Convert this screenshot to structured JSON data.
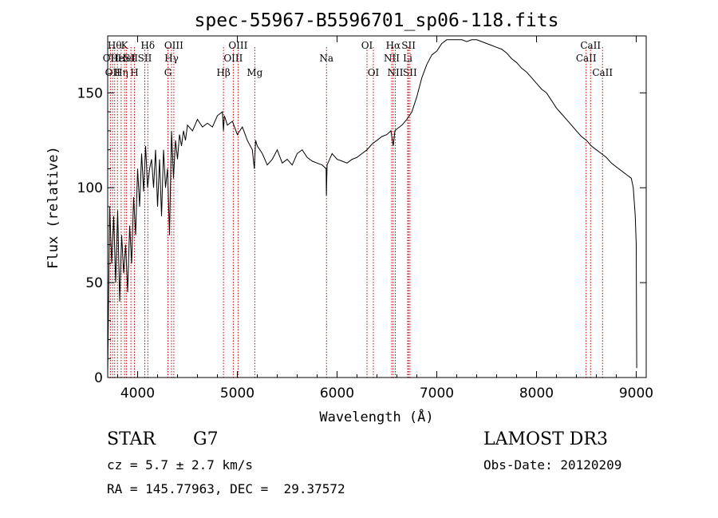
{
  "chart_data": {
    "type": "line",
    "title": "spec-55967-B5596701_sp06-118.fits",
    "xlabel": "Wavelength (Å)",
    "ylabel": "Flux (relative)",
    "xlim": [
      3700,
      9100
    ],
    "ylim": [
      0,
      180
    ],
    "xticks": [
      4000,
      5000,
      6000,
      7000,
      8000,
      9000
    ],
    "yticks": [
      0,
      50,
      100,
      150
    ],
    "series": [
      {
        "name": "spectrum",
        "color": "#000000",
        "x": [
          3700,
          3720,
          3740,
          3760,
          3780,
          3800,
          3820,
          3840,
          3860,
          3880,
          3900,
          3920,
          3940,
          3960,
          3980,
          4000,
          4020,
          4040,
          4060,
          4080,
          4100,
          4120,
          4140,
          4160,
          4180,
          4200,
          4220,
          4240,
          4260,
          4280,
          4300,
          4320,
          4340,
          4360,
          4380,
          4400,
          4420,
          4440,
          4460,
          4480,
          4500,
          4550,
          4600,
          4650,
          4700,
          4750,
          4800,
          4850,
          4861,
          4870,
          4900,
          4950,
          5000,
          5050,
          5100,
          5150,
          5170,
          5183,
          5200,
          5250,
          5300,
          5350,
          5400,
          5450,
          5500,
          5550,
          5600,
          5650,
          5700,
          5750,
          5800,
          5850,
          5890,
          5893,
          5900,
          5950,
          6000,
          6050,
          6100,
          6150,
          6200,
          6250,
          6300,
          6350,
          6400,
          6450,
          6500,
          6540,
          6563,
          6580,
          6600,
          6650,
          6700,
          6750,
          6800,
          6850,
          6900,
          6950,
          7000,
          7050,
          7100,
          7150,
          7200,
          7250,
          7300,
          7350,
          7400,
          7450,
          7500,
          7550,
          7600,
          7650,
          7700,
          7750,
          7800,
          7850,
          7900,
          7950,
          8000,
          8050,
          8100,
          8150,
          8200,
          8250,
          8300,
          8350,
          8400,
          8450,
          8500,
          8550,
          8600,
          8650,
          8700,
          8750,
          8800,
          8850,
          8900,
          8950,
          8970,
          8990,
          9000,
          9005
        ],
        "y": [
          2,
          90,
          60,
          85,
          50,
          88,
          40,
          75,
          55,
          70,
          45,
          80,
          60,
          95,
          75,
          110,
          90,
          118,
          98,
          122,
          100,
          110,
          115,
          100,
          120,
          90,
          115,
          85,
          120,
          100,
          110,
          75,
          130,
          105,
          125,
          115,
          128,
          122,
          130,
          125,
          133,
          130,
          136,
          132,
          134,
          132,
          138,
          140,
          130,
          138,
          133,
          135,
          128,
          132,
          125,
          120,
          110,
          125,
          122,
          118,
          112,
          115,
          120,
          113,
          115,
          112,
          118,
          120,
          116,
          114,
          113,
          112,
          110,
          96,
          112,
          118,
          115,
          114,
          113,
          115,
          116,
          118,
          120,
          123,
          125,
          127,
          128,
          130,
          122,
          130,
          131,
          133,
          136,
          140,
          148,
          158,
          165,
          170,
          172,
          176,
          178,
          178,
          178,
          178,
          177,
          178,
          178,
          177,
          176,
          175,
          174,
          173,
          171,
          168,
          166,
          163,
          161,
          158,
          155,
          152,
          150,
          146,
          142,
          139,
          136,
          133,
          130,
          127,
          125,
          122,
          120,
          118,
          116,
          113,
          111,
          109,
          107,
          105,
          100,
          85,
          70,
          5
        ]
      }
    ],
    "lines": [
      {
        "x": 3727,
        "label": "OII",
        "row": 2
      },
      {
        "x": 3750,
        "label": "OII",
        "row": 3
      },
      {
        "x": 3770,
        "label": "Hθ",
        "row": 1
      },
      {
        "x": 3798,
        "label": "He",
        "row": 2
      },
      {
        "x": 3835,
        "label": "Hη",
        "row": 3
      },
      {
        "x": 3869,
        "label": "K",
        "row": 1
      },
      {
        "x": 3889,
        "label": "HeI",
        "row": 2
      },
      {
        "x": 3933,
        "label": "SII",
        "row": 2
      },
      {
        "x": 3968,
        "label": "H",
        "row": 3
      },
      {
        "x": 4072,
        "label": "SII",
        "row": 2
      },
      {
        "x": 4102,
        "label": "Hδ",
        "row": 1
      },
      {
        "x": 4304,
        "label": "G",
        "row": 3
      },
      {
        "x": 4340,
        "label": "Hγ",
        "row": 2
      },
      {
        "x": 4363,
        "label": "OIII",
        "row": 1
      },
      {
        "x": 4861,
        "label": "Hβ",
        "row": 3
      },
      {
        "x": 4959,
        "label": "OIII",
        "row": 2
      },
      {
        "x": 5007,
        "label": "OIII",
        "row": 1
      },
      {
        "x": 5175,
        "label": "Mg",
        "row": 3
      },
      {
        "x": 5894,
        "label": "Na",
        "row": 2
      },
      {
        "x": 6300,
        "label": "OI",
        "row": 1
      },
      {
        "x": 6364,
        "label": "OI",
        "row": 3
      },
      {
        "x": 6548,
        "label": "NII",
        "row": 2
      },
      {
        "x": 6563,
        "label": "Hα",
        "row": 1
      },
      {
        "x": 6584,
        "label": "NII",
        "row": 3
      },
      {
        "x": 6717,
        "label": "SII",
        "row": 1
      },
      {
        "x": 6731,
        "label": "SII",
        "row": 3
      },
      {
        "x": 6708,
        "label": "Li",
        "row": 2
      },
      {
        "x": 8498,
        "label": "CaII",
        "row": 2
      },
      {
        "x": 8542,
        "label": "CaII",
        "row": 1
      },
      {
        "x": 8662,
        "label": "CaII",
        "row": 3
      }
    ]
  },
  "info": {
    "class": "STAR",
    "subclass": "G7",
    "survey": "LAMOST DR3",
    "cz": "cz = 5.7 ± 2.7 km/s",
    "obs_date": "Obs-Date: 20120209",
    "coords": "RA = 145.77963, DEC =  29.37572"
  }
}
